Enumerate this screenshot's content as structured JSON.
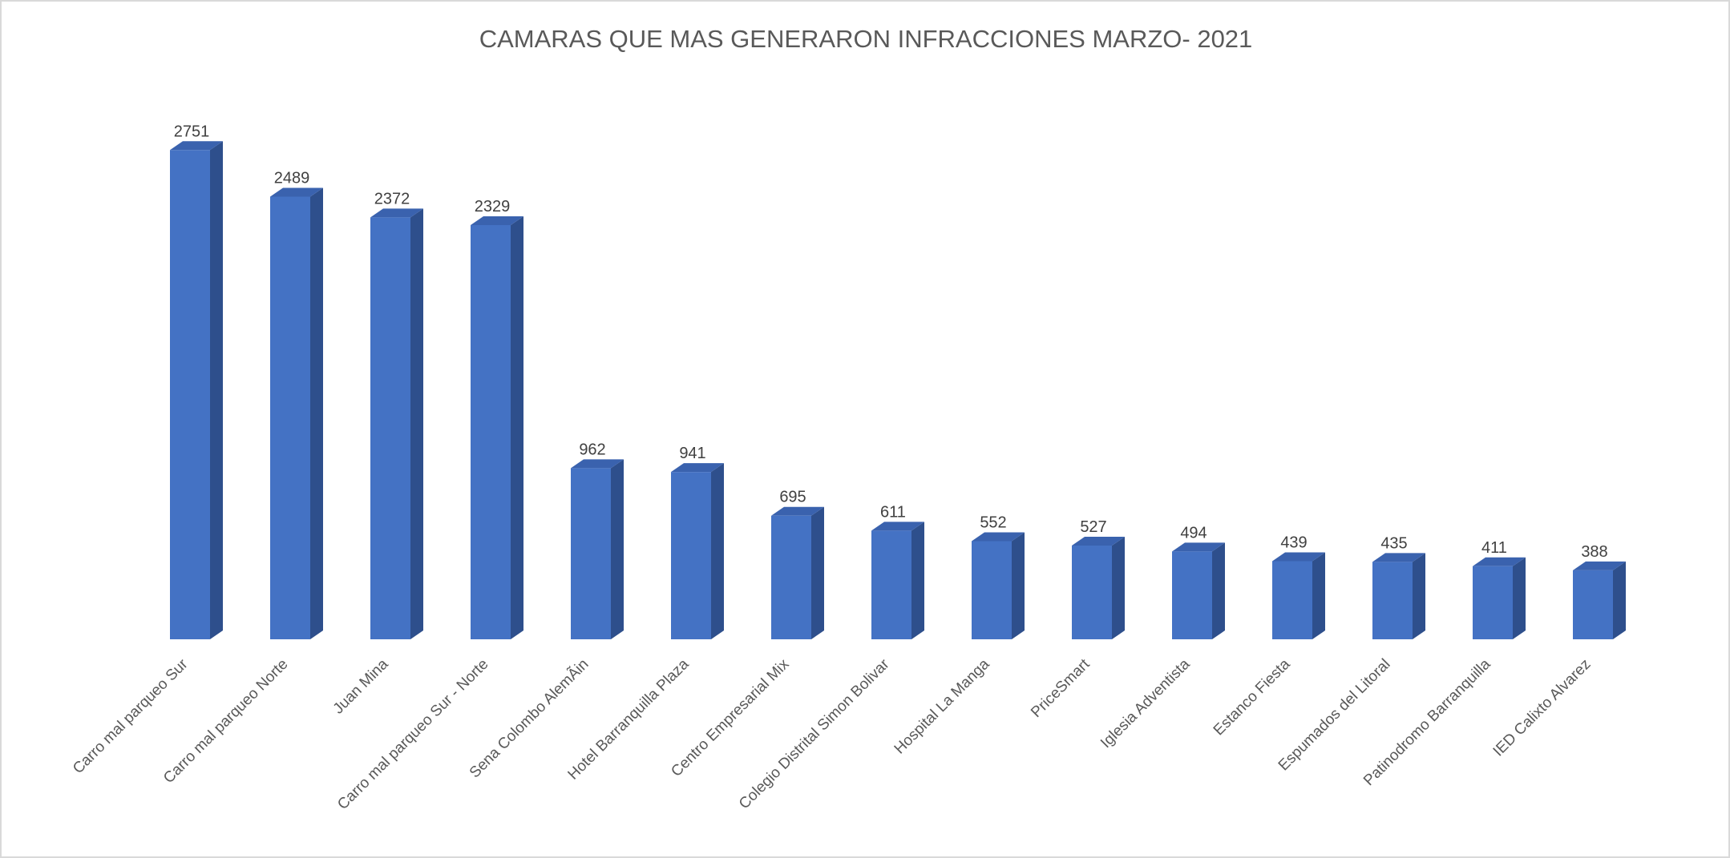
{
  "chart_data": {
    "type": "bar3d",
    "title": "CAMARAS QUE MAS GENERARON INFRACCIONES MARZO- 2021",
    "categories": [
      "Carro mal parqueo Sur",
      "Carro mal parqueo Norte",
      "Juan Mina",
      "Carro mal parqueo Sur - Norte",
      "Sena Colombo AlemÃin",
      "Hotel Barranquilla Plaza",
      "Centro Empresarial Mix",
      "Colegio Distrital Simon Bolivar",
      "Hospital La Manga",
      "PriceSmart",
      "Iglesia Adventista",
      "Estanco Fiesta",
      "Espumados del Litoral",
      "Patinodromo Barranquilla",
      "IED Calixto Alvarez"
    ],
    "values": [
      2751,
      2489,
      2372,
      2329,
      962,
      941,
      695,
      611,
      552,
      527,
      494,
      439,
      435,
      411,
      388
    ],
    "color": "#4472c4",
    "ylim": [
      0,
      3000
    ]
  }
}
